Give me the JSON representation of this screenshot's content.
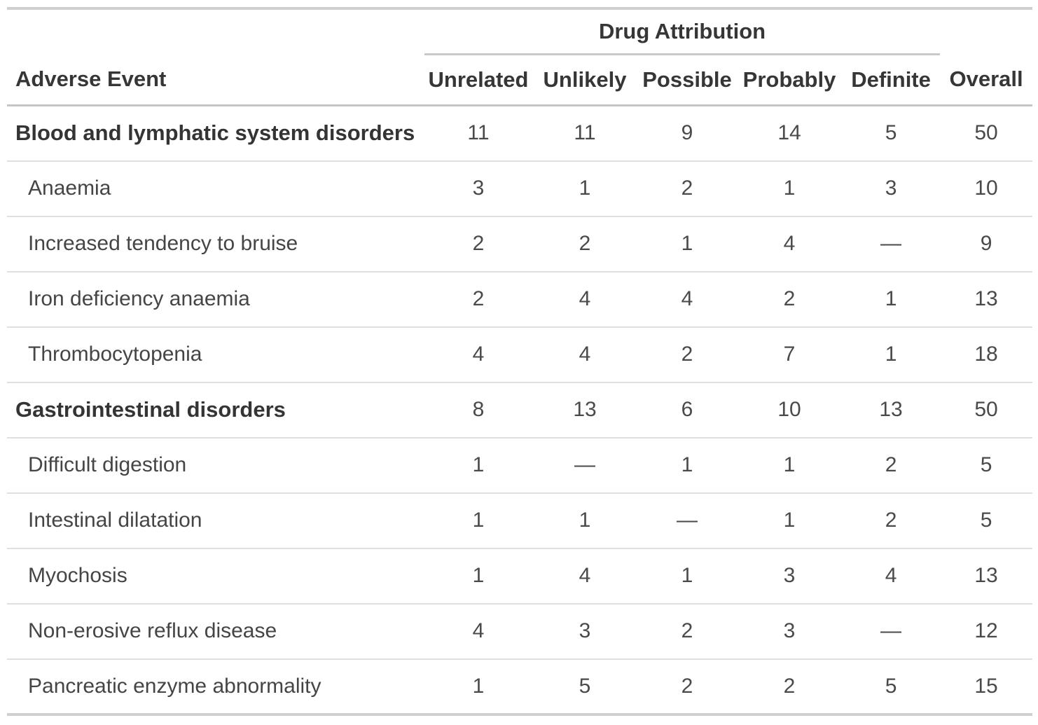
{
  "table": {
    "spanner_label": "Drug Attribution",
    "stub_header": "Adverse Event",
    "columns": [
      "Unrelated",
      "Unlikely",
      "Possible",
      "Probably",
      "Definite",
      "Overall"
    ],
    "empty_marker": "—",
    "colors": {
      "outer_border": "#cfcfcf",
      "header_border": "#c5c5c5",
      "row_border": "#dfdfdf",
      "heading_text": "#363636",
      "body_text": "#4a4a4a"
    },
    "rows": [
      {
        "label": "Blood and lymphatic system disorders",
        "type": "group",
        "values": [
          "11",
          "11",
          "9",
          "14",
          "5",
          "50"
        ]
      },
      {
        "label": "Anaemia",
        "type": "sub",
        "values": [
          "3",
          "1",
          "2",
          "1",
          "3",
          "10"
        ]
      },
      {
        "label": "Increased tendency to bruise",
        "type": "sub",
        "values": [
          "2",
          "2",
          "1",
          "4",
          "—",
          "9"
        ]
      },
      {
        "label": "Iron deficiency anaemia",
        "type": "sub",
        "values": [
          "2",
          "4",
          "4",
          "2",
          "1",
          "13"
        ]
      },
      {
        "label": "Thrombocytopenia",
        "type": "sub",
        "values": [
          "4",
          "4",
          "2",
          "7",
          "1",
          "18"
        ]
      },
      {
        "label": "Gastrointestinal disorders",
        "type": "group",
        "values": [
          "8",
          "13",
          "6",
          "10",
          "13",
          "50"
        ]
      },
      {
        "label": "Difficult digestion",
        "type": "sub",
        "values": [
          "1",
          "—",
          "1",
          "1",
          "2",
          "5"
        ]
      },
      {
        "label": "Intestinal dilatation",
        "type": "sub",
        "values": [
          "1",
          "1",
          "—",
          "1",
          "2",
          "5"
        ]
      },
      {
        "label": "Myochosis",
        "type": "sub",
        "values": [
          "1",
          "4",
          "1",
          "3",
          "4",
          "13"
        ]
      },
      {
        "label": "Non-erosive reflux disease",
        "type": "sub",
        "values": [
          "4",
          "3",
          "2",
          "3",
          "—",
          "12"
        ]
      },
      {
        "label": "Pancreatic enzyme abnormality",
        "type": "sub",
        "values": [
          "1",
          "5",
          "2",
          "2",
          "5",
          "15"
        ]
      }
    ]
  }
}
